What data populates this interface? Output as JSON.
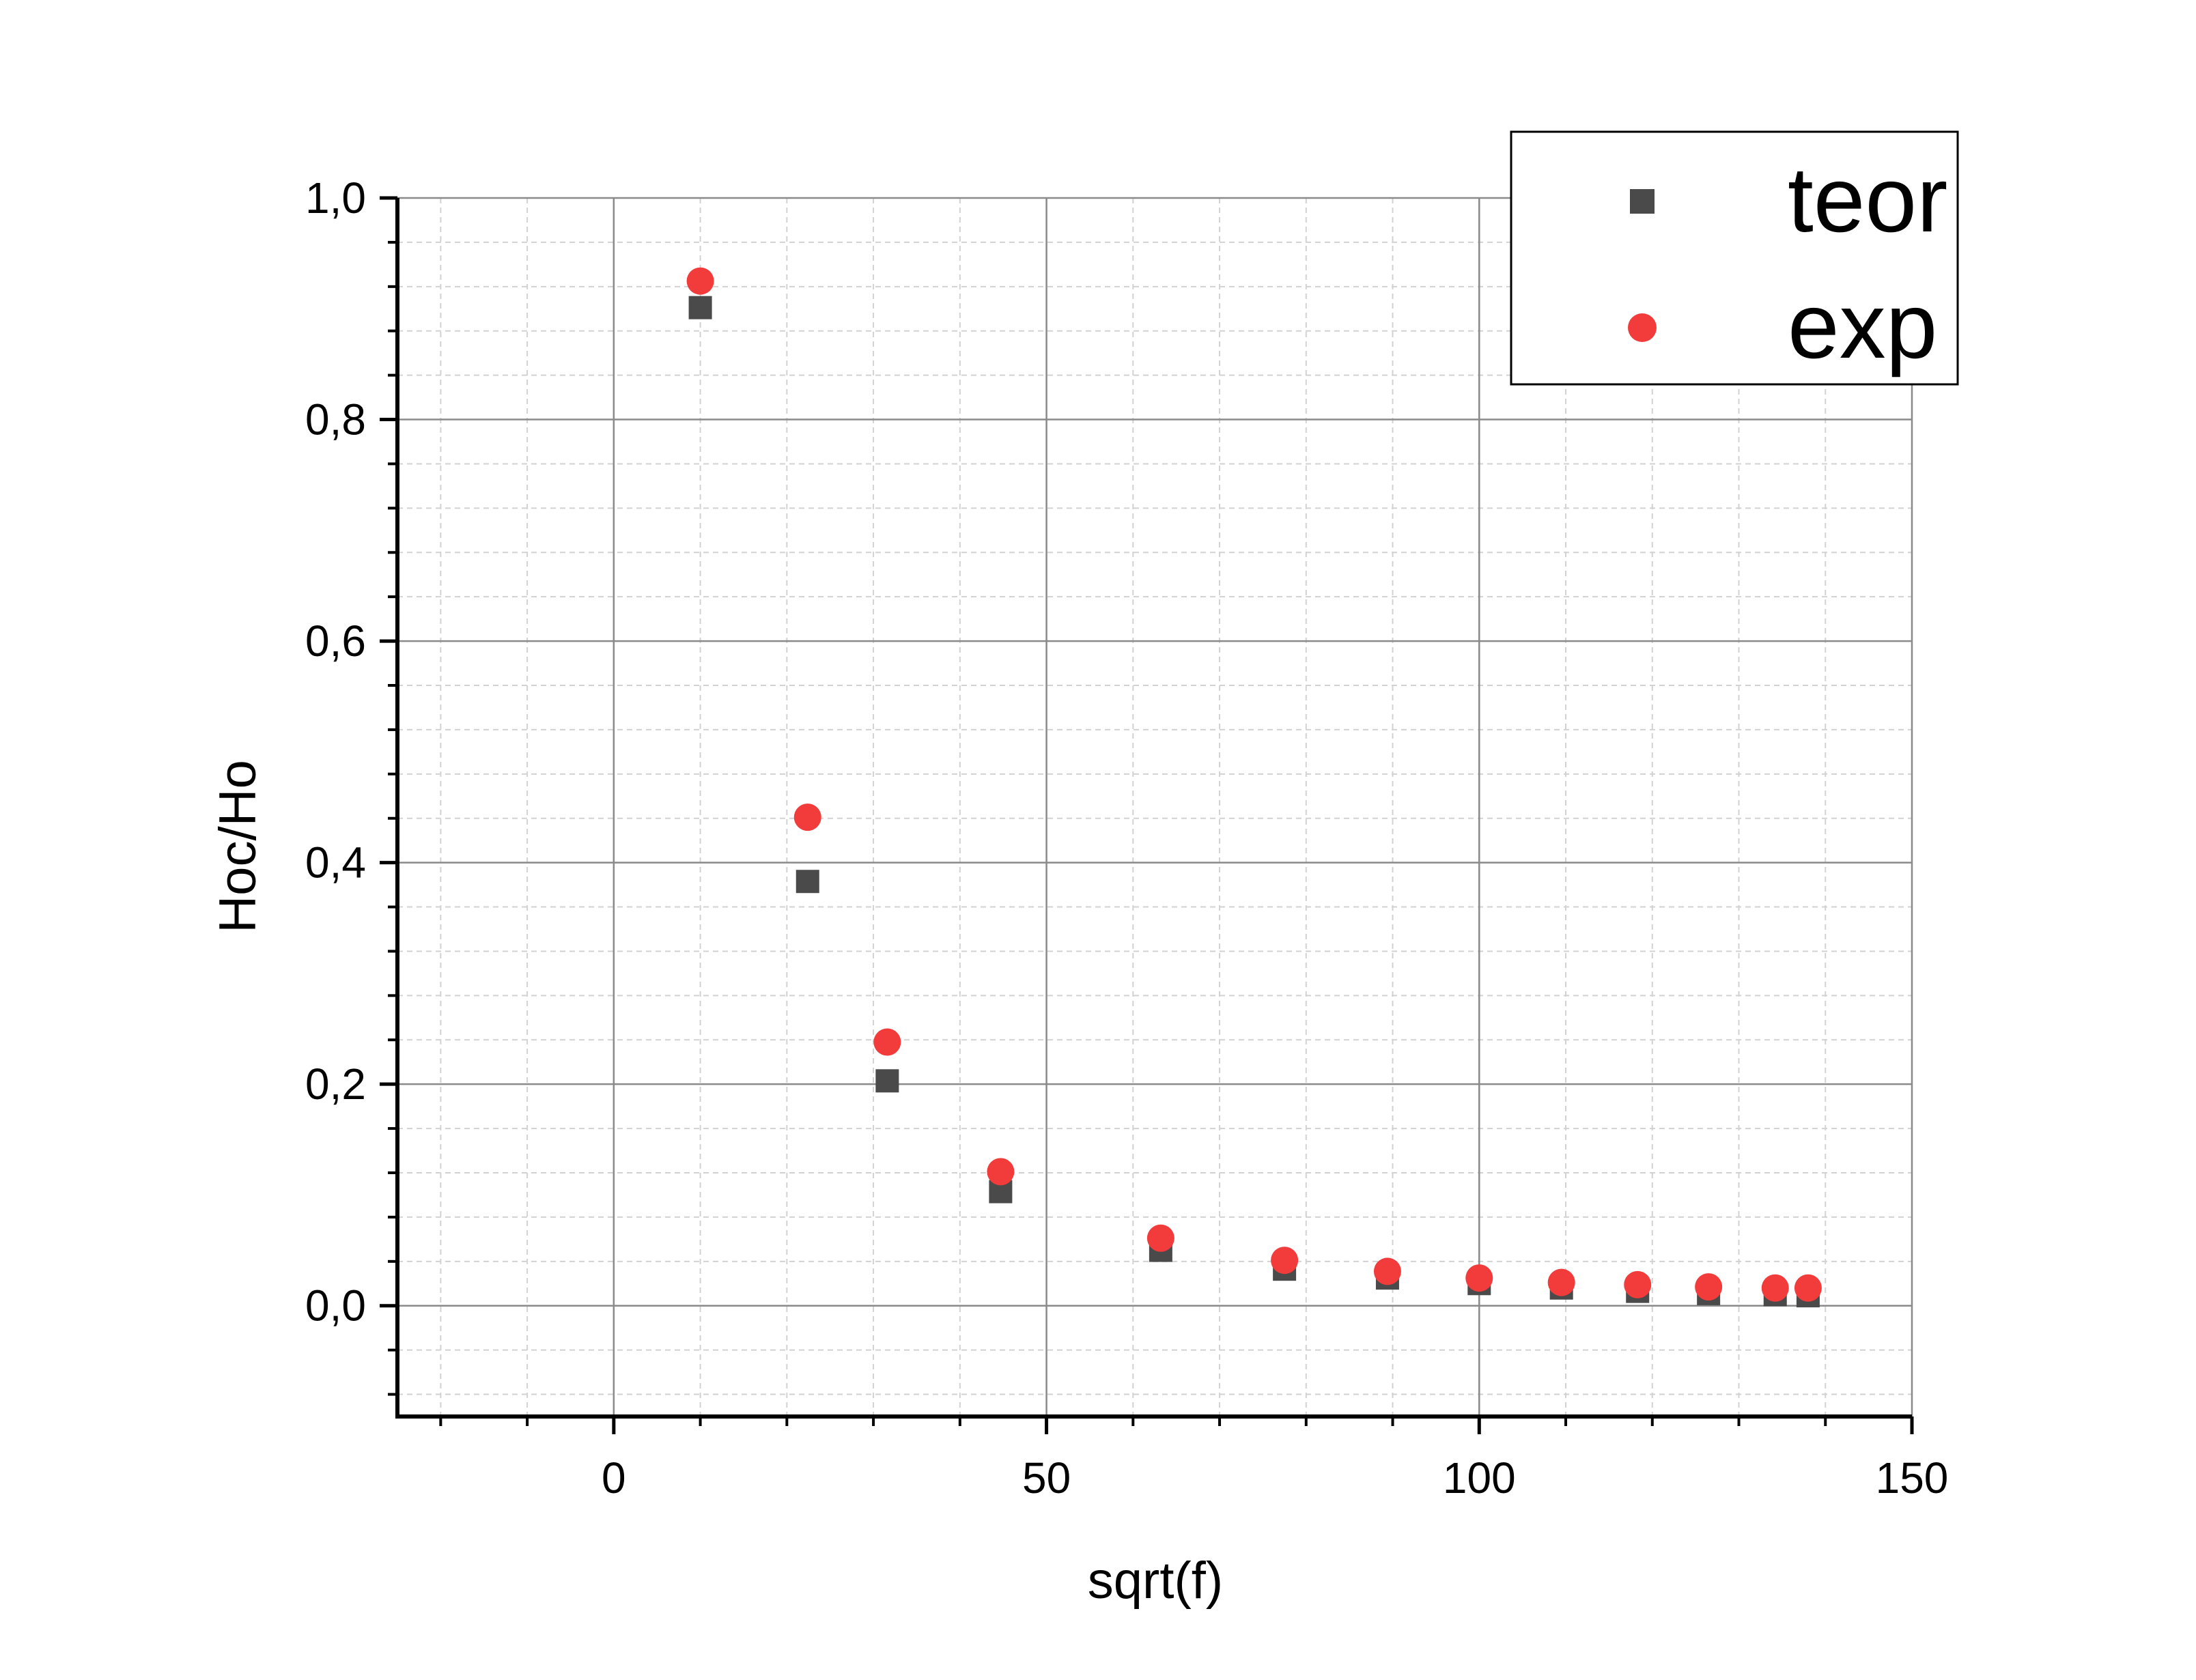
{
  "chart_data": {
    "type": "scatter",
    "xlabel": "sqrt(f)",
    "ylabel": "Hoc/Ho",
    "xlim": [
      -25,
      150
    ],
    "ylim": [
      -0.1,
      1.0
    ],
    "x_ticks": [
      0,
      50,
      100,
      150
    ],
    "x_tick_labels": [
      "0",
      "50",
      "100",
      "150"
    ],
    "y_ticks": [
      0.0,
      0.2,
      0.4,
      0.6,
      0.8,
      1.0
    ],
    "y_tick_labels": [
      "0,0",
      "0,2",
      "0,4",
      "0,6",
      "0,8",
      "1,0"
    ],
    "grid": true,
    "legend_position": "top-right",
    "series": [
      {
        "name": "teor",
        "marker": "square",
        "color": "#4a4a4a",
        "points": [
          {
            "x": 10.0,
            "y": 0.901
          },
          {
            "x": 22.4,
            "y": 0.383
          },
          {
            "x": 31.6,
            "y": 0.203
          },
          {
            "x": 44.7,
            "y": 0.103
          },
          {
            "x": 63.2,
            "y": 0.05
          },
          {
            "x": 77.5,
            "y": 0.033
          },
          {
            "x": 89.4,
            "y": 0.025
          },
          {
            "x": 100.0,
            "y": 0.02
          },
          {
            "x": 109.5,
            "y": 0.016
          },
          {
            "x": 118.3,
            "y": 0.013
          },
          {
            "x": 126.5,
            "y": 0.011
          },
          {
            "x": 134.2,
            "y": 0.01
          },
          {
            "x": 138.0,
            "y": 0.009
          }
        ]
      },
      {
        "name": "exp",
        "marker": "circle",
        "color": "#f23b3b",
        "points": [
          {
            "x": 10.0,
            "y": 0.925
          },
          {
            "x": 22.4,
            "y": 0.441
          },
          {
            "x": 31.6,
            "y": 0.238
          },
          {
            "x": 44.7,
            "y": 0.121
          },
          {
            "x": 63.2,
            "y": 0.061
          },
          {
            "x": 77.5,
            "y": 0.041
          },
          {
            "x": 89.4,
            "y": 0.031
          },
          {
            "x": 100.0,
            "y": 0.025
          },
          {
            "x": 109.5,
            "y": 0.021
          },
          {
            "x": 118.3,
            "y": 0.019
          },
          {
            "x": 126.5,
            "y": 0.017
          },
          {
            "x": 134.2,
            "y": 0.016
          },
          {
            "x": 138.0,
            "y": 0.016
          }
        ]
      }
    ]
  }
}
